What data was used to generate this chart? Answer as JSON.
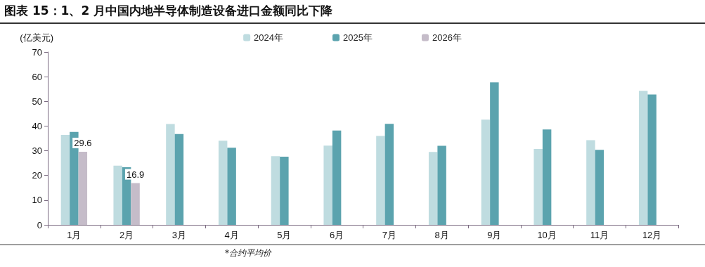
{
  "chart_data": {
    "type": "bar",
    "title": "图表 15：1、2 月中国内地半导体制造设备进口金额同比下降",
    "ylabel": "(亿美元)",
    "categories": [
      "1月",
      "2月",
      "3月",
      "4月",
      "5月",
      "6月",
      "7月",
      "8月",
      "9月",
      "10月",
      "11月",
      "12月"
    ],
    "series": [
      {
        "name": "2024年",
        "color": "#bfdce0",
        "values": [
          36.4,
          24.0,
          40.8,
          34.1,
          27.8,
          32.1,
          36.0,
          29.5,
          42.6,
          30.7,
          34.3,
          54.3
        ]
      },
      {
        "name": "2025年",
        "color": "#5ba3ae",
        "values": [
          37.6,
          23.3,
          36.8,
          31.2,
          27.6,
          38.2,
          40.9,
          32.0,
          57.7,
          38.6,
          30.4,
          52.8
        ]
      },
      {
        "name": "2026年",
        "color": "#c5bcc9",
        "values": [
          29.6,
          16.9,
          null,
          null,
          null,
          null,
          null,
          null,
          null,
          null,
          null,
          null
        ],
        "value_labels": [
          "29.6",
          "16.9",
          null,
          null,
          null,
          null,
          null,
          null,
          null,
          null,
          null,
          null
        ]
      }
    ],
    "ylim": [
      0,
      70
    ],
    "yticks": [
      0,
      10,
      20,
      30,
      40,
      50,
      60,
      70
    ],
    "grid": false,
    "legend": "top",
    "annotations": [
      "*合约平均价"
    ]
  }
}
